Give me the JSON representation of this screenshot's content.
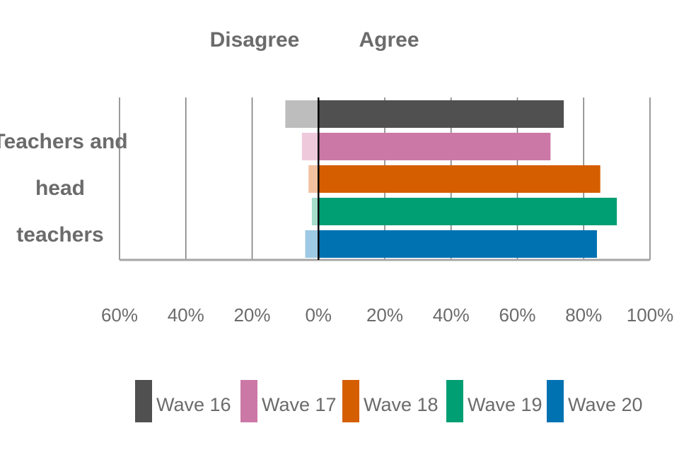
{
  "chart_data": {
    "type": "bar",
    "orientation": "horizontal-diverging",
    "headers": {
      "left": "Disagree",
      "right": "Agree"
    },
    "category": "Teachers and head teachers",
    "category_lines": [
      "Teachers and",
      "head",
      "teachers"
    ],
    "x_tick_labels": [
      "60%",
      "40%",
      "20%",
      "0%",
      "20%",
      "40%",
      "60%",
      "80%",
      "100%"
    ],
    "x_tick_values": [
      -60,
      -40,
      -20,
      0,
      20,
      40,
      60,
      80,
      100
    ],
    "xlim": [
      -60,
      100
    ],
    "grid": true,
    "legend_position": "bottom",
    "series": [
      {
        "name": "Wave 16",
        "agree": 74,
        "disagree": 10,
        "color": "#505050",
        "light_color": "#bdbdbd"
      },
      {
        "name": "Wave 17",
        "agree": 70,
        "disagree": 5,
        "color": "#cc78a6",
        "light_color": "#eec9dc"
      },
      {
        "name": "Wave 18",
        "agree": 85,
        "disagree": 3,
        "color": "#d55e00",
        "light_color": "#f2c19f"
      },
      {
        "name": "Wave 19",
        "agree": 90,
        "disagree": 2,
        "color": "#009e73",
        "light_color": "#a3dcc8"
      },
      {
        "name": "Wave 20",
        "agree": 84,
        "disagree": 4,
        "color": "#0072b2",
        "light_color": "#9ec9e4"
      }
    ]
  }
}
